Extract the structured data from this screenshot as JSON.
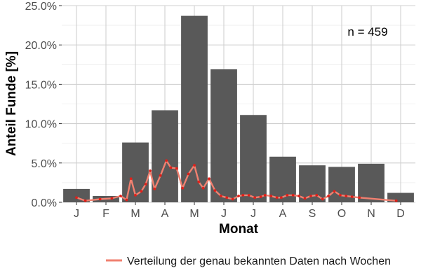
{
  "chart_data": {
    "type": "bar",
    "xlabel": "Monat",
    "ylabel": "Anteil Funde [%]",
    "ylim": [
      0,
      25
    ],
    "yticks": [
      "0.0%",
      "5.0%",
      "10.0%",
      "15.0%",
      "20.0%",
      "25.0%"
    ],
    "ytick_values": [
      0,
      5,
      10,
      15,
      20,
      25
    ],
    "categories": [
      "J",
      "F",
      "M",
      "A",
      "M",
      "J",
      "J",
      "A",
      "S",
      "O",
      "N",
      "D"
    ],
    "values": [
      1.7,
      0.8,
      7.6,
      11.7,
      23.7,
      16.9,
      11.1,
      5.8,
      4.7,
      4.5,
      4.9,
      1.2
    ],
    "bar_color": "#595959",
    "grid": true,
    "annotation": "n = 459",
    "line_series": {
      "name": "Verteilung der genau bekannten Daten nach Wochen",
      "color": "#f08070",
      "point_color": "#e0201a",
      "x": [
        0.5,
        0.8,
        1.3,
        1.7,
        2.0,
        2.2,
        2.35,
        2.5,
        2.7,
        2.85,
        3.0,
        3.15,
        3.35,
        3.55,
        3.7,
        3.9,
        4.1,
        4.3,
        4.5,
        4.65,
        4.8,
        5.0,
        5.2,
        5.4,
        5.6,
        5.8,
        6.0,
        6.15,
        6.35,
        6.55,
        6.75,
        6.9,
        7.1,
        7.3,
        7.45,
        7.65,
        7.85,
        8.05,
        8.25,
        8.45,
        8.65,
        8.85,
        9.05,
        9.25,
        9.45,
        9.65,
        9.85,
        10.1,
        11.35
      ],
      "y": [
        0.6,
        0.2,
        0.4,
        0.5,
        0.8,
        0.3,
        3.0,
        0.9,
        1.4,
        2.3,
        4.0,
        1.7,
        3.4,
        5.3,
        4.4,
        4.3,
        1.8,
        3.6,
        4.7,
        2.6,
        1.8,
        3.0,
        1.5,
        0.8,
        0.6,
        0.4,
        0.8,
        0.9,
        0.9,
        0.6,
        0.7,
        0.9,
        0.8,
        0.6,
        0.6,
        0.9,
        0.9,
        0.8,
        0.5,
        0.8,
        0.9,
        0.4,
        0.8,
        1.4,
        0.9,
        0.8,
        0.7,
        0.6,
        0.2
      ]
    },
    "legend_position": "bottom"
  }
}
